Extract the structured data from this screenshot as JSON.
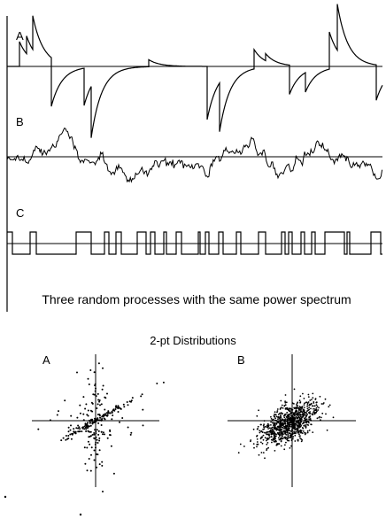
{
  "top": {
    "traces": [
      {
        "label": "A"
      },
      {
        "label": "B"
      },
      {
        "label": "C"
      }
    ],
    "caption": "Three random processes with the same power spectrum"
  },
  "bottom": {
    "title": "2-pt Distributions",
    "panels": [
      {
        "label": "A"
      },
      {
        "label": "B"
      }
    ]
  },
  "colors": {
    "ink": "#000000",
    "background": "#ffffff"
  }
}
